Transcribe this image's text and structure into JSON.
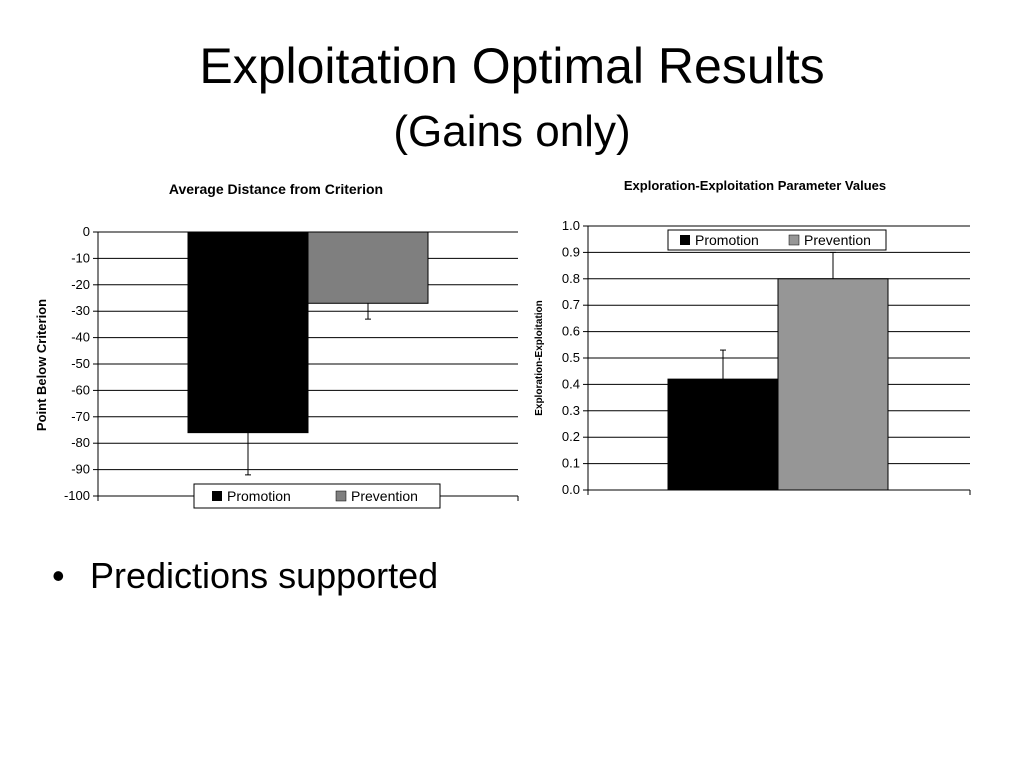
{
  "slide": {
    "title": "Exploitation Optimal Results",
    "subtitle": "(Gains only)",
    "bullets": [
      "Predictions supported"
    ]
  },
  "chart_data": [
    {
      "type": "bar",
      "title": "Average Distance from Criterion",
      "xlabel": "",
      "ylabel": "Point Below Criterion",
      "ylim": [
        -100,
        0
      ],
      "yticks": [
        0,
        -10,
        -20,
        -30,
        -40,
        -50,
        -60,
        -70,
        -80,
        -90,
        -100
      ],
      "grid": true,
      "legend_position": "bottom",
      "series": [
        {
          "name": "Promotion",
          "values": [
            -76
          ],
          "error": [
            16
          ],
          "color": "#000000"
        },
        {
          "name": "Prevention",
          "values": [
            -27
          ],
          "error": [
            6
          ],
          "color": "#7f7f7f"
        }
      ]
    },
    {
      "type": "bar",
      "title": "Exploration-Exploitation Parameter Values",
      "xlabel": "",
      "ylabel": "Exploration-Exploitation",
      "ylim": [
        0,
        1
      ],
      "yticks": [
        "0.0",
        "0.1",
        "0.2",
        "0.3",
        "0.4",
        "0.5",
        "0.6",
        "0.7",
        "0.8",
        "0.9",
        "1.0"
      ],
      "grid": true,
      "legend_position": "top",
      "series": [
        {
          "name": "Promotion",
          "values": [
            0.42
          ],
          "error": [
            0.11
          ],
          "color": "#000000"
        },
        {
          "name": "Prevention",
          "values": [
            0.8
          ],
          "error": [
            0.1
          ],
          "color": "#969696"
        }
      ]
    }
  ]
}
